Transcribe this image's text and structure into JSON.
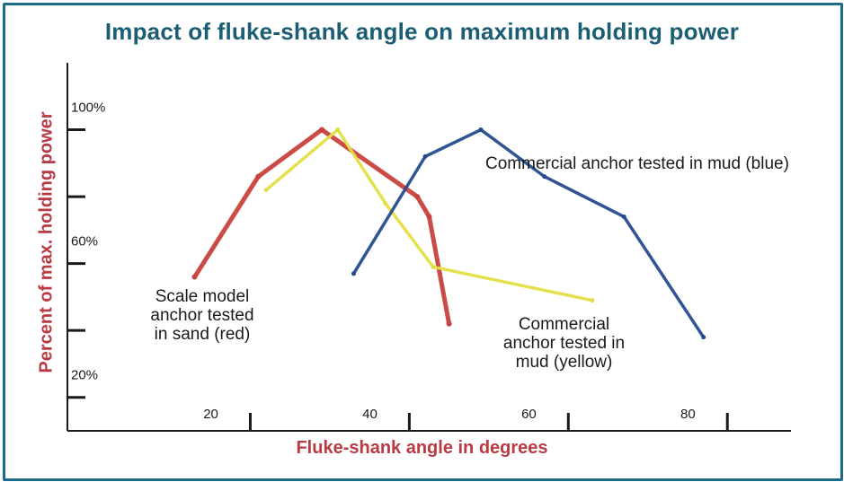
{
  "chart_data": {
    "type": "line",
    "title": "Impact of fluke-shank angle on maximum holding power",
    "xlabel": "Fluke-shank angle in degrees",
    "ylabel": "Percent of max. holding power",
    "x_ticks": [
      20,
      40,
      60,
      80
    ],
    "y_ticks": [
      "100%",
      "60%",
      "20%"
    ],
    "x_tick_values": [
      20,
      40,
      60,
      80
    ],
    "y_tick_values": [
      100,
      60,
      20
    ],
    "xlim": [
      2,
      93
    ],
    "ylim": [
      0,
      110
    ],
    "grid": false,
    "series": [
      {
        "name": "Scale model anchor tested in sand (red)",
        "color": "#c8413d",
        "x": [
          18,
          26,
          34,
          46,
          47.5,
          50
        ],
        "y": [
          46,
          76,
          90,
          70,
          64,
          32
        ]
      },
      {
        "name": "Commercial anchor tested in mud (yellow)",
        "color": "#e3de45",
        "x": [
          27,
          36,
          42,
          48,
          68
        ],
        "y": [
          72,
          90,
          68,
          49,
          39
        ]
      },
      {
        "name": "Commercial anchor tested in mud (blue)",
        "color": "#244c8c",
        "x": [
          38,
          47,
          54,
          62,
          72,
          82
        ],
        "y": [
          47,
          82,
          90,
          76,
          64,
          28
        ]
      }
    ],
    "annotations": [
      {
        "series": 0,
        "lines": [
          "Scale model",
          "anchor tested",
          "in sand (red)"
        ]
      },
      {
        "series": 1,
        "lines": [
          "Commercial",
          "anchor tested in",
          "mud (yellow)"
        ]
      },
      {
        "series": 2,
        "lines": [
          "Commercial anchor tested in mud (blue)"
        ]
      }
    ]
  }
}
